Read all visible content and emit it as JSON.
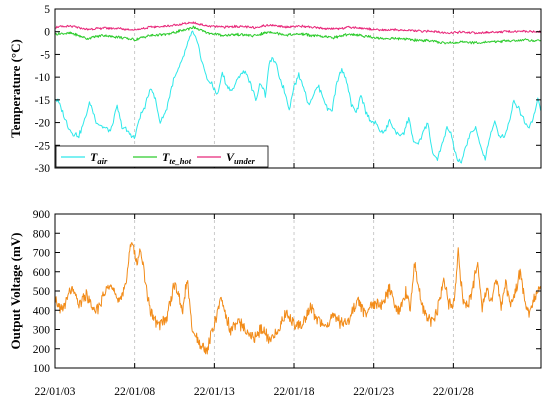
{
  "chart_data": [
    {
      "type": "line",
      "ylabel": "Temperature (°C)",
      "ylim": [
        -30,
        5
      ],
      "yticks": [
        5,
        0,
        -5,
        -10,
        -15,
        -20,
        -25,
        -30
      ],
      "xlim": [
        0,
        30.5
      ],
      "grid": "vertical-dashed",
      "legend": {
        "placement": "bottom-left",
        "entries": [
          {
            "main": "T",
            "sub": "air",
            "color": "#2ee8ea"
          },
          {
            "main": "T",
            "sub": "te_hot",
            "color": "#2ecc2e"
          },
          {
            "main": "V",
            "sub": "under",
            "color": "#e8287a"
          }
        ]
      },
      "series": [
        {
          "key": "T_air",
          "color": "#2ee8ea",
          "points": [
            [
              0,
              -14.5
            ],
            [
              0.3,
              -16
            ],
            [
              0.6,
              -19
            ],
            [
              1.0,
              -22
            ],
            [
              1.5,
              -23
            ],
            [
              1.9,
              -19
            ],
            [
              2.2,
              -15.5
            ],
            [
              2.6,
              -20
            ],
            [
              3.0,
              -21
            ],
            [
              3.5,
              -22
            ],
            [
              3.9,
              -16.5
            ],
            [
              4.2,
              -21
            ],
            [
              4.6,
              -22
            ],
            [
              5.0,
              -23.5
            ],
            [
              5.3,
              -19
            ],
            [
              5.7,
              -16
            ],
            [
              6.0,
              -12
            ],
            [
              6.3,
              -15
            ],
            [
              6.6,
              -20
            ],
            [
              7.0,
              -17
            ],
            [
              7.4,
              -11
            ],
            [
              7.8,
              -8
            ],
            [
              8.2,
              -4
            ],
            [
              8.6,
              0
            ],
            [
              8.9,
              -2
            ],
            [
              9.2,
              -6
            ],
            [
              9.5,
              -10
            ],
            [
              9.9,
              -12
            ],
            [
              10.2,
              -14
            ],
            [
              10.5,
              -9
            ],
            [
              10.8,
              -12
            ],
            [
              11.1,
              -13
            ],
            [
              11.4,
              -11
            ],
            [
              11.7,
              -9
            ],
            [
              12.0,
              -9
            ],
            [
              12.3,
              -12
            ],
            [
              12.6,
              -15
            ],
            [
              12.9,
              -11
            ],
            [
              13.2,
              -14
            ],
            [
              13.5,
              -6
            ],
            [
              13.8,
              -6.5
            ],
            [
              14.1,
              -10
            ],
            [
              14.4,
              -13
            ],
            [
              14.7,
              -17
            ],
            [
              15.0,
              -12
            ],
            [
              15.3,
              -9.5
            ],
            [
              15.6,
              -12
            ],
            [
              15.9,
              -16
            ],
            [
              16.2,
              -14
            ],
            [
              16.5,
              -12
            ],
            [
              16.8,
              -14
            ],
            [
              17.1,
              -17
            ],
            [
              17.4,
              -17
            ],
            [
              17.7,
              -11
            ],
            [
              18.0,
              -8
            ],
            [
              18.3,
              -11
            ],
            [
              18.6,
              -16
            ],
            [
              18.9,
              -18
            ],
            [
              19.2,
              -14
            ],
            [
              19.5,
              -17.5
            ],
            [
              19.8,
              -19.5
            ],
            [
              20.1,
              -20
            ],
            [
              20.4,
              -22
            ],
            [
              20.7,
              -22
            ],
            [
              21.0,
              -19.5
            ],
            [
              21.3,
              -21.5
            ],
            [
              21.6,
              -23
            ],
            [
              21.9,
              -22
            ],
            [
              22.2,
              -19
            ],
            [
              22.5,
              -24
            ],
            [
              22.8,
              -25
            ],
            [
              23.1,
              -22
            ],
            [
              23.4,
              -20
            ],
            [
              23.7,
              -27
            ],
            [
              24.0,
              -28
            ],
            [
              24.3,
              -25
            ],
            [
              24.6,
              -21
            ],
            [
              24.9,
              -23
            ],
            [
              25.2,
              -28
            ],
            [
              25.5,
              -29
            ],
            [
              25.8,
              -25
            ],
            [
              26.1,
              -22
            ],
            [
              26.4,
              -21.5
            ],
            [
              26.7,
              -25
            ],
            [
              27.0,
              -28
            ],
            [
              27.3,
              -23
            ],
            [
              27.6,
              -20
            ],
            [
              27.9,
              -23
            ],
            [
              28.2,
              -23
            ],
            [
              28.5,
              -20
            ],
            [
              28.8,
              -15
            ],
            [
              29.1,
              -17
            ],
            [
              29.4,
              -19
            ],
            [
              29.7,
              -21
            ],
            [
              30.0,
              -19
            ],
            [
              30.3,
              -15
            ],
            [
              30.5,
              -17
            ]
          ]
        },
        {
          "key": "T_te_hot",
          "color": "#2ecc2e",
          "points": [
            [
              0,
              -0.5
            ],
            [
              1.0,
              -0.3
            ],
            [
              2.0,
              -1.5
            ],
            [
              3.0,
              -0.8
            ],
            [
              4.0,
              -1.2
            ],
            [
              5.0,
              -1.8
            ],
            [
              6.0,
              -0.8
            ],
            [
              7.0,
              -0.6
            ],
            [
              8.0,
              0.3
            ],
            [
              8.7,
              1.0
            ],
            [
              9.5,
              -0.2
            ],
            [
              10.5,
              -0.8
            ],
            [
              11.5,
              -0.6
            ],
            [
              12.5,
              -0.9
            ],
            [
              13.5,
              0.0
            ],
            [
              14.5,
              -0.7
            ],
            [
              15.5,
              -0.5
            ],
            [
              16.5,
              -1.0
            ],
            [
              17.5,
              -1.3
            ],
            [
              18.5,
              -0.5
            ],
            [
              19.5,
              -1.0
            ],
            [
              20.5,
              -1.5
            ],
            [
              21.5,
              -1.5
            ],
            [
              22.5,
              -1.8
            ],
            [
              23.5,
              -2.0
            ],
            [
              24.5,
              -2.5
            ],
            [
              25.5,
              -2.3
            ],
            [
              26.5,
              -2.4
            ],
            [
              27.5,
              -2.2
            ],
            [
              28.5,
              -2.0
            ],
            [
              29.5,
              -1.8
            ],
            [
              30.5,
              -2.0
            ]
          ]
        },
        {
          "key": "V_under",
          "color": "#e8287a",
          "points": [
            [
              0,
              1.0
            ],
            [
              1.0,
              1.2
            ],
            [
              2.0,
              0.5
            ],
            [
              3.0,
              0.8
            ],
            [
              4.0,
              0.7
            ],
            [
              5.0,
              0.4
            ],
            [
              6.0,
              1.0
            ],
            [
              7.0,
              1.2
            ],
            [
              8.0,
              1.7
            ],
            [
              8.7,
              2.0
            ],
            [
              9.5,
              1.3
            ],
            [
              10.5,
              1.0
            ],
            [
              11.5,
              1.2
            ],
            [
              12.5,
              0.9
            ],
            [
              13.5,
              1.5
            ],
            [
              14.5,
              1.1
            ],
            [
              15.5,
              1.2
            ],
            [
              16.5,
              0.8
            ],
            [
              17.5,
              0.6
            ],
            [
              18.5,
              1.0
            ],
            [
              19.5,
              0.7
            ],
            [
              20.5,
              0.4
            ],
            [
              21.5,
              0.4
            ],
            [
              22.5,
              0.2
            ],
            [
              23.5,
              0.1
            ],
            [
              24.5,
              -0.3
            ],
            [
              25.5,
              -0.1
            ],
            [
              26.5,
              -0.3
            ],
            [
              27.5,
              -0.1
            ],
            [
              28.5,
              0.0
            ],
            [
              29.5,
              0.1
            ],
            [
              30.5,
              0.0
            ]
          ]
        }
      ]
    },
    {
      "type": "line",
      "ylabel": "Output Voltage (mV)",
      "ylim": [
        100,
        900
      ],
      "yticks": [
        900,
        800,
        700,
        600,
        500,
        400,
        300,
        200,
        100
      ],
      "xlim": [
        0,
        30.5
      ],
      "x_tick_positions": [
        0,
        5,
        10,
        15,
        20,
        25
      ],
      "x_tick_labels": [
        "22/01/03",
        "22/01/08",
        "22/01/13",
        "22/01/18",
        "22/01/23",
        "22/01/28"
      ],
      "grid": "vertical-dashed",
      "series": [
        {
          "key": "Output_Voltage",
          "color": "#f28c1a",
          "points": [
            [
              0,
              440
            ],
            [
              0.5,
              400
            ],
            [
              1.0,
              520
            ],
            [
              1.5,
              430
            ],
            [
              2.0,
              480
            ],
            [
              2.5,
              380
            ],
            [
              3.0,
              470
            ],
            [
              3.5,
              550
            ],
            [
              4.0,
              430
            ],
            [
              4.5,
              560
            ],
            [
              4.8,
              780
            ],
            [
              5.1,
              640
            ],
            [
              5.4,
              720
            ],
            [
              5.7,
              520
            ],
            [
              6.0,
              390
            ],
            [
              6.5,
              320
            ],
            [
              7.0,
              360
            ],
            [
              7.5,
              540
            ],
            [
              8.0,
              400
            ],
            [
              8.3,
              560
            ],
            [
              8.6,
              300
            ],
            [
              8.9,
              260
            ],
            [
              9.2,
              210
            ],
            [
              9.5,
              180
            ],
            [
              9.8,
              280
            ],
            [
              10.1,
              350
            ],
            [
              10.4,
              470
            ],
            [
              10.7,
              380
            ],
            [
              11.0,
              300
            ],
            [
              11.5,
              330
            ],
            [
              12.0,
              300
            ],
            [
              12.5,
              260
            ],
            [
              13.0,
              310
            ],
            [
              13.5,
              240
            ],
            [
              14.0,
              300
            ],
            [
              14.5,
              380
            ],
            [
              15.0,
              330
            ],
            [
              15.5,
              320
            ],
            [
              16.0,
              420
            ],
            [
              16.5,
              350
            ],
            [
              17.0,
              310
            ],
            [
              17.5,
              380
            ],
            [
              18.0,
              330
            ],
            [
              18.5,
              350
            ],
            [
              19.0,
              450
            ],
            [
              19.5,
              380
            ],
            [
              20.0,
              440
            ],
            [
              20.5,
              420
            ],
            [
              21.0,
              510
            ],
            [
              21.5,
              380
            ],
            [
              22.0,
              500
            ],
            [
              22.3,
              420
            ],
            [
              22.6,
              650
            ],
            [
              22.8,
              520
            ],
            [
              23.1,
              400
            ],
            [
              23.5,
              340
            ],
            [
              23.8,
              360
            ],
            [
              24.1,
              430
            ],
            [
              24.4,
              560
            ],
            [
              24.7,
              430
            ],
            [
              25.0,
              420
            ],
            [
              25.3,
              700
            ],
            [
              25.6,
              440
            ],
            [
              25.9,
              420
            ],
            [
              26.2,
              500
            ],
            [
              26.5,
              640
            ],
            [
              26.8,
              420
            ],
            [
              27.1,
              500
            ],
            [
              27.4,
              440
            ],
            [
              27.7,
              560
            ],
            [
              28.0,
              430
            ],
            [
              28.3,
              540
            ],
            [
              28.6,
              410
            ],
            [
              28.9,
              500
            ],
            [
              29.2,
              600
            ],
            [
              29.5,
              420
            ],
            [
              29.8,
              380
            ],
            [
              30.1,
              470
            ],
            [
              30.5,
              520
            ]
          ]
        }
      ]
    }
  ]
}
